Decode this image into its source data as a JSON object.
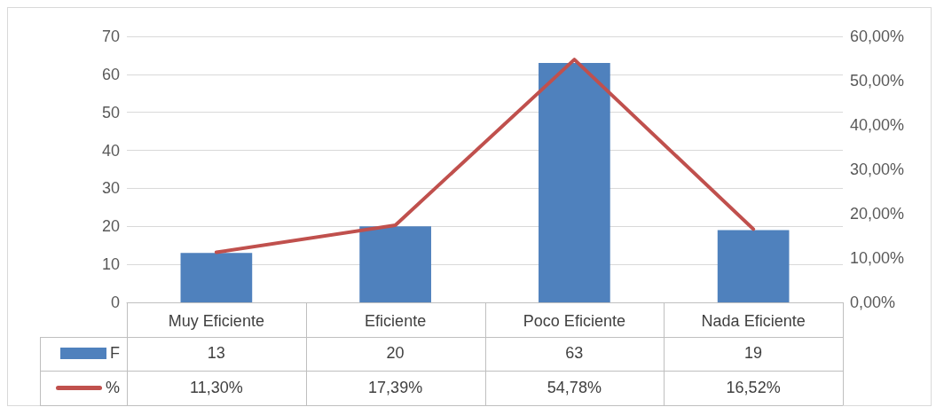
{
  "chart_data": {
    "type": "bar",
    "categories": [
      "Muy Eficiente",
      "Eficiente",
      "Poco Eficiente",
      "Nada Eficiente"
    ],
    "series": [
      {
        "name": "F",
        "color": "#4f81bd",
        "values": [
          13,
          20,
          63,
          19
        ],
        "value_labels": [
          "13",
          "20",
          "63",
          "19"
        ]
      },
      {
        "name": "%",
        "type": "line",
        "axis": "y2",
        "color": "#c0504d",
        "values": [
          11.3,
          17.39,
          54.78,
          16.52
        ],
        "value_labels": [
          "11,30%",
          "17,39%",
          "54,78%",
          "16,52%"
        ]
      }
    ],
    "ylim": [
      0,
      70
    ],
    "yticks": [
      0,
      10,
      20,
      30,
      40,
      50,
      60,
      70
    ],
    "y2lim": [
      0,
      60
    ],
    "y2ticks": [
      {
        "value": 0,
        "label": "0,00%"
      },
      {
        "value": 10,
        "label": "10,00%"
      },
      {
        "value": 20,
        "label": "20,00%"
      },
      {
        "value": 30,
        "label": "30,00%"
      },
      {
        "value": 40,
        "label": "40,00%"
      },
      {
        "value": 50,
        "label": "50,00%"
      },
      {
        "value": 60,
        "label": "60,00%"
      }
    ],
    "grid": "y",
    "legend": "bottom left",
    "marker": "none",
    "line_style": "solid"
  }
}
